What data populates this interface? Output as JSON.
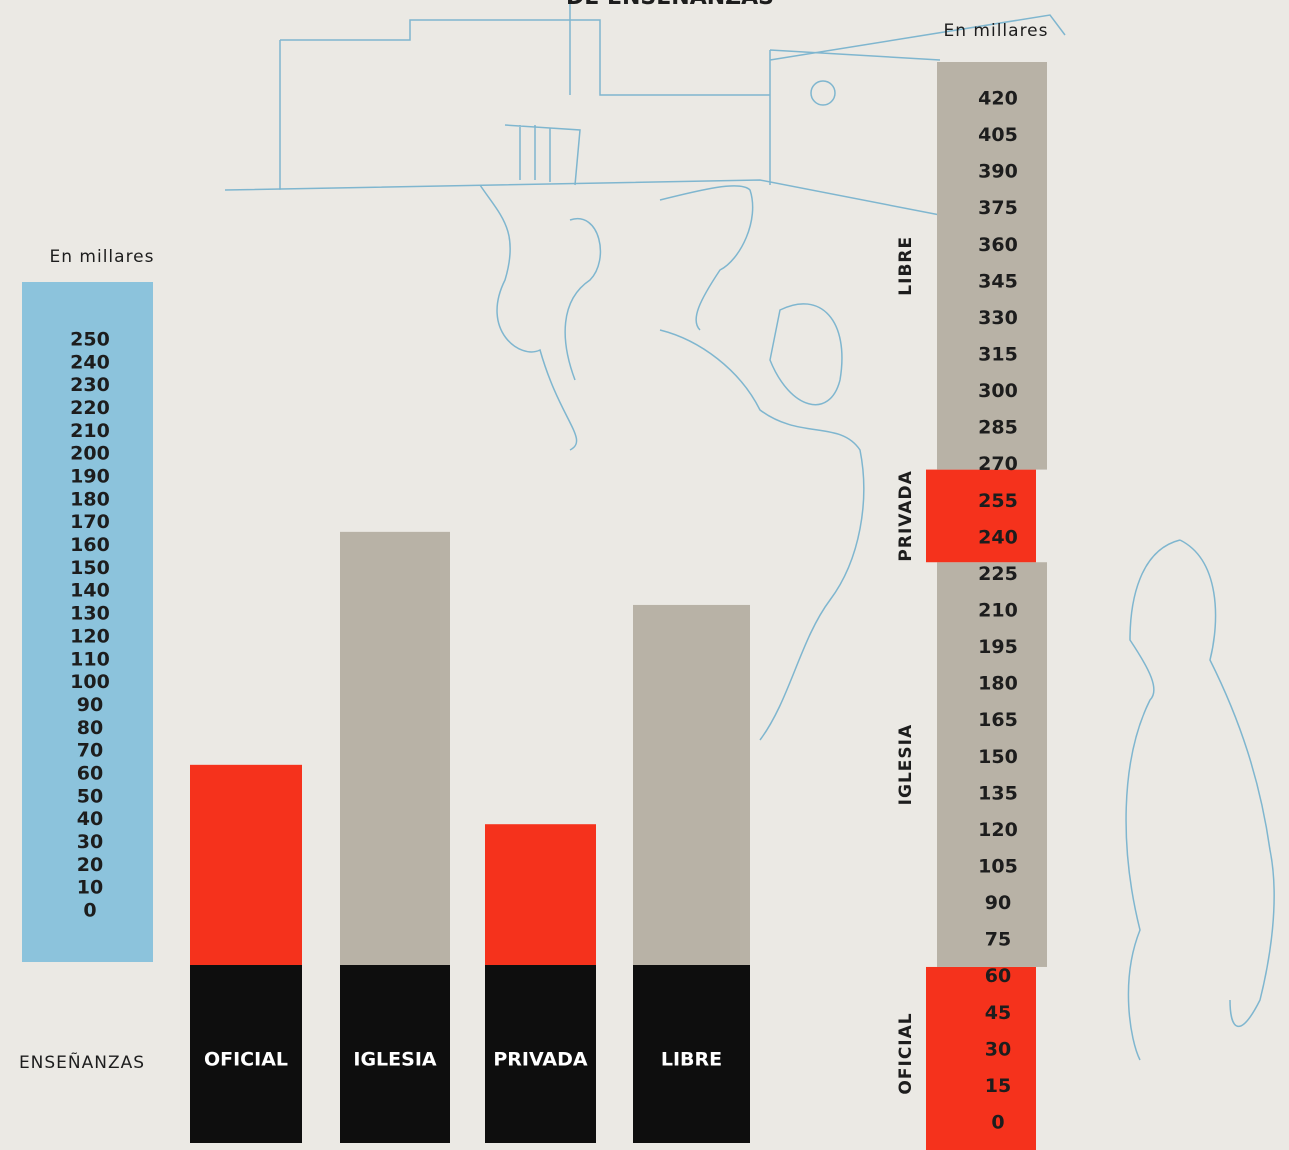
{
  "chart_data": {
    "type": "bar",
    "title": "DE ENSEÑANZAS",
    "y_label": "En millares",
    "x_label": "ENSEÑANZAS",
    "categories": [
      "OFICIAL",
      "IGLESIA",
      "PRIVADA",
      "LIBRE"
    ],
    "values": [
      64,
      166,
      38,
      134
    ],
    "colors": [
      "#f5321c",
      "#b8b2a6",
      "#f5321c",
      "#b8b2a6"
    ],
    "scale_color": "#8cc3dc",
    "label_box_color": "#0e0e0e",
    "ylim": [
      0,
      250
    ],
    "yticks": [
      0,
      10,
      20,
      30,
      40,
      50,
      60,
      70,
      80,
      90,
      100,
      110,
      120,
      130,
      140,
      150,
      160,
      170,
      180,
      190,
      200,
      210,
      220,
      230,
      240,
      250
    ],
    "stack": {
      "y_label": "En millares",
      "ylim": [
        0,
        420
      ],
      "yticks": [
        0,
        15,
        30,
        45,
        60,
        75,
        90,
        105,
        120,
        135,
        150,
        165,
        180,
        195,
        210,
        225,
        240,
        255,
        270,
        285,
        300,
        315,
        330,
        345,
        360,
        375,
        390,
        405,
        420
      ]
    }
  }
}
